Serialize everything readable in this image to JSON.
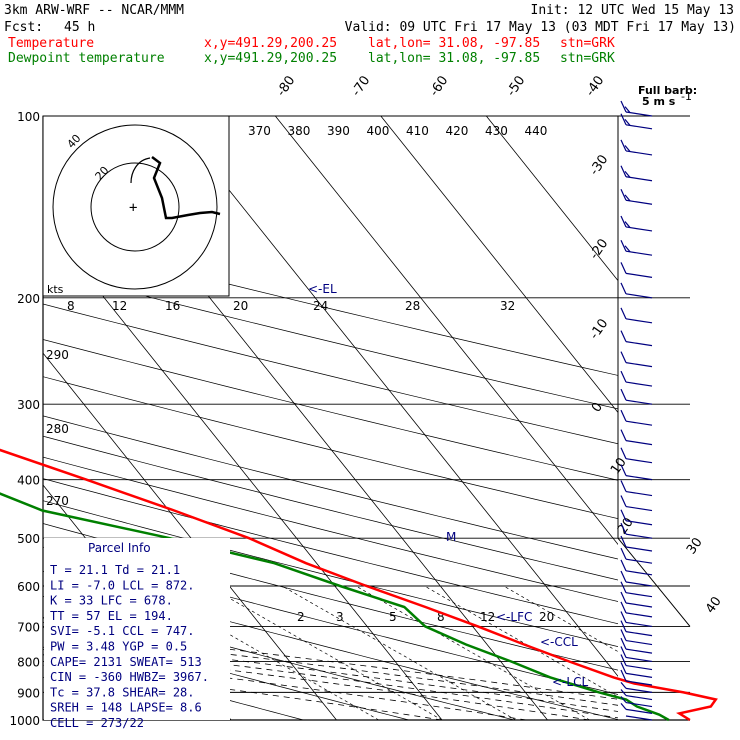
{
  "header": {
    "model": "3km ARW-WRF -- NCAR/MMM",
    "init": "Init: 12 UTC Wed 15 May 13",
    "fcst_label": "Fcst:",
    "fcst_value": "45 h",
    "valid": "Valid: 09 UTC Fri 17 May 13 (03 MDT Fri 17 May 13)",
    "temp_label": "Temperature",
    "dew_label": "Dewpoint temperature",
    "xy": "x,y=491.29,200.25",
    "latlon": "lat,lon= 31.08, -97.85",
    "stn": "stn=GRK",
    "barb_title": "Full barb:",
    "barb_unit": "5 m s",
    "barb_exp": "-1"
  },
  "colors": {
    "temperature": "#ff0000",
    "dewpoint": "#008000",
    "text_blue": "#000080",
    "wind": "#000080"
  },
  "parcel_info": {
    "title": "Parcel Info",
    "rows": [
      "T  =   21.1  Td =  21.1",
      "LI =   -7.0 LCL =  872.",
      "K  =     33 LFC =  678.",
      "TT =     57  EL =  194.",
      "SVI=   -5.1 CCL =  747.",
      "PW =   3.48 YGP =   0.5",
      "CAPE=  2131 SWEAT=  513",
      "CIN =  -360 HWBZ= 3967.",
      "Tc  =  37.8 SHEAR=  28.",
      "SREH =  148 LAPSE=  8.6",
      "CELL = 273/22"
    ]
  },
  "hodograph": {
    "kts_label": "kts",
    "ring_labels": [
      "20",
      "40"
    ]
  },
  "annotations": {
    "el": "<-EL",
    "lfc": "<-LFC",
    "ccl": "<-CCL",
    "lcl": "<-LCL",
    "m": "M"
  },
  "chart_data": {
    "type": "line",
    "title": "",
    "y_axis": {
      "label": "",
      "scale": "log",
      "ylim": [
        1000,
        100
      ],
      "ticks": [
        100,
        200,
        300,
        400,
        500,
        600,
        700,
        800,
        900,
        1000
      ]
    },
    "isotherm_labels": [
      "-80",
      "-70",
      "-60",
      "-50",
      "-40",
      "-30",
      "-20",
      "-10",
      "0",
      "10",
      "20",
      "30",
      "40"
    ],
    "theta_e_labels": [
      "370",
      "380",
      "390",
      "400",
      "410",
      "420",
      "430",
      "440"
    ],
    "theta_labels_left": [
      "290",
      "280",
      "270"
    ],
    "mixing_ratio_labels": [
      "2",
      "3",
      "5",
      "8",
      "12",
      "20"
    ],
    "kts_labels": [
      "8",
      "12",
      "16",
      "20",
      "24",
      "28",
      "32"
    ],
    "series": [
      {
        "name": "Temperature",
        "points": [
          [
            1000,
            23.5
          ],
          [
            975,
            23.0
          ],
          [
            950,
            26.5
          ],
          [
            925,
            27.5
          ],
          [
            900,
            25.0
          ],
          [
            870,
            21.0
          ],
          [
            850,
            19.5
          ],
          [
            800,
            16.5
          ],
          [
            750,
            13.5
          ],
          [
            700,
            10.5
          ],
          [
            650,
            7.0
          ],
          [
            600,
            3.0
          ],
          [
            550,
            -1.0
          ],
          [
            500,
            -4.5
          ],
          [
            450,
            -9.5
          ],
          [
            400,
            -15.5
          ],
          [
            350,
            -22.5
          ],
          [
            300,
            -31.0
          ],
          [
            250,
            -42.0
          ],
          [
            200,
            -55.0
          ],
          [
            175,
            -60.5
          ],
          [
            150,
            -63.5
          ],
          [
            125,
            -65.5
          ],
          [
            100,
            -68.0
          ]
        ]
      },
      {
        "name": "Dewpoint temperature",
        "points": [
          [
            1000,
            21.5
          ],
          [
            980,
            21.0
          ],
          [
            950,
            19.5
          ],
          [
            925,
            19.0
          ],
          [
            900,
            17.0
          ],
          [
            850,
            13.5
          ],
          [
            800,
            11.0
          ],
          [
            750,
            8.0
          ],
          [
            700,
            5.5
          ],
          [
            650,
            5.0
          ],
          [
            600,
            0.5
          ],
          [
            550,
            -4.0
          ],
          [
            500,
            -12.0
          ],
          [
            450,
            -22.0
          ],
          [
            400,
            -27.0
          ],
          [
            350,
            -34.0
          ],
          [
            300,
            -37.0
          ],
          [
            275,
            -40.0
          ],
          [
            250,
            -45.0
          ],
          [
            220,
            -52.0
          ],
          [
            200,
            -62.0
          ],
          [
            175,
            -63.0
          ],
          [
            150,
            -66.0
          ],
          [
            125,
            -69.0
          ],
          [
            100,
            -76.0
          ]
        ]
      }
    ],
    "wind_barbs": {
      "units": "m/s",
      "levels": [
        [
          1000,
          2
        ],
        [
          975,
          4
        ],
        [
          950,
          6
        ],
        [
          925,
          7
        ],
        [
          900,
          7
        ],
        [
          875,
          8
        ],
        [
          850,
          8
        ],
        [
          825,
          9
        ],
        [
          800,
          10
        ],
        [
          775,
          10
        ],
        [
          750,
          10
        ],
        [
          725,
          10
        ],
        [
          700,
          10
        ],
        [
          675,
          10
        ],
        [
          650,
          10
        ],
        [
          625,
          10
        ],
        [
          600,
          10
        ],
        [
          575,
          10
        ],
        [
          550,
          10
        ],
        [
          525,
          10
        ],
        [
          500,
          10
        ],
        [
          475,
          10
        ],
        [
          450,
          10
        ],
        [
          425,
          10
        ],
        [
          400,
          10
        ],
        [
          375,
          10
        ],
        [
          350,
          10
        ],
        [
          325,
          10
        ],
        [
          300,
          10
        ],
        [
          280,
          10
        ],
        [
          260,
          10
        ],
        [
          240,
          10
        ],
        [
          220,
          10
        ],
        [
          200,
          10
        ],
        [
          185,
          10
        ],
        [
          170,
          15
        ],
        [
          155,
          15
        ],
        [
          140,
          15
        ],
        [
          128,
          15
        ],
        [
          116,
          15
        ],
        [
          105,
          15
        ],
        [
          100,
          15
        ]
      ]
    }
  }
}
